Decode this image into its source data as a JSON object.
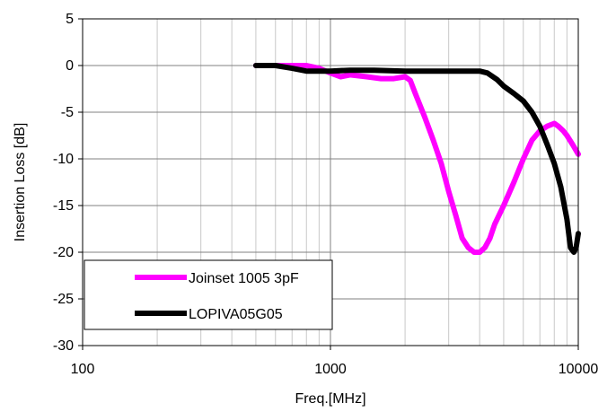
{
  "chart_data": {
    "type": "line",
    "title": "",
    "xlabel": "Freq.[MHz]",
    "ylabel": "Insertion Loss [dB]",
    "x_scale": "log",
    "xlim": [
      100,
      10000
    ],
    "ylim": [
      -30,
      5
    ],
    "x_ticks": [
      100,
      1000,
      10000
    ],
    "x_tick_labels": [
      "100",
      "1000",
      "10000"
    ],
    "y_ticks": [
      5,
      0,
      -5,
      -10,
      -15,
      -20,
      -25,
      -30
    ],
    "y_tick_labels": [
      "5",
      "0",
      "-5",
      "-10",
      "-15",
      "-20",
      "-25",
      "-30"
    ],
    "grid": true,
    "legend_position": "bottom-left",
    "series": [
      {
        "name": "Joinset 1005 3pF",
        "color": "#ff00ff",
        "x": [
          500,
          600,
          700,
          800,
          900,
          1000,
          1100,
          1200,
          1400,
          1600,
          1800,
          2000,
          2100,
          2200,
          2400,
          2600,
          2800,
          3000,
          3200,
          3400,
          3600,
          3800,
          4000,
          4200,
          4400,
          4600,
          5000,
          5500,
          6000,
          6500,
          7000,
          7500,
          8000,
          8300,
          8700,
          9000,
          9500,
          10000
        ],
        "y": [
          0,
          0,
          0,
          0,
          -0.3,
          -0.8,
          -1.2,
          -1.0,
          -1.2,
          -1.4,
          -1.4,
          -1.2,
          -1.6,
          -3,
          -5.5,
          -8,
          -10.5,
          -13.5,
          -16,
          -18.5,
          -19.5,
          -20,
          -20,
          -19.5,
          -18.5,
          -17,
          -15,
          -12.5,
          -10,
          -8,
          -7,
          -6.5,
          -6.2,
          -6.5,
          -7,
          -7.5,
          -8.5,
          -9.5
        ]
      },
      {
        "name": "LOPIVA05G05",
        "color": "#000000",
        "x": [
          500,
          600,
          700,
          800,
          900,
          1000,
          1200,
          1500,
          2000,
          2500,
          3000,
          3500,
          4000,
          4300,
          4700,
          5000,
          5500,
          6000,
          6500,
          7000,
          7500,
          8000,
          8500,
          9000,
          9300,
          9600,
          9800,
          10000
        ],
        "y": [
          0,
          0,
          -0.3,
          -0.6,
          -0.6,
          -0.6,
          -0.5,
          -0.5,
          -0.6,
          -0.6,
          -0.6,
          -0.6,
          -0.6,
          -0.8,
          -1.5,
          -2.2,
          -3,
          -3.8,
          -5,
          -6.5,
          -8.5,
          -10.5,
          -13,
          -16.5,
          -19.5,
          -20,
          -19.5,
          -18
        ]
      }
    ]
  }
}
